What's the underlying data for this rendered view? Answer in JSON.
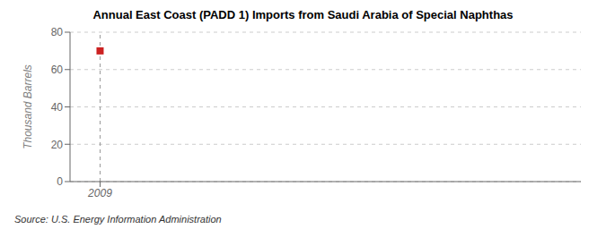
{
  "chart_data": {
    "type": "scatter",
    "title": "Annual East Coast (PADD 1) Imports from Saudi Arabia of Special Naphthas",
    "y_label": "Thousand Barrels",
    "annotations": [
      "Source: U.S. Energy Information Administration"
    ],
    "x": [
      2009
    ],
    "values": [
      70
    ],
    "color": "#cc2222",
    "marker": "square",
    "vline": 2009,
    "xlim": [
      2008.6,
      2015.4
    ],
    "ylim": [
      0,
      80
    ],
    "xticks": [
      2009
    ],
    "yticks": [
      0,
      20,
      40,
      60,
      80
    ],
    "grid": true
  }
}
